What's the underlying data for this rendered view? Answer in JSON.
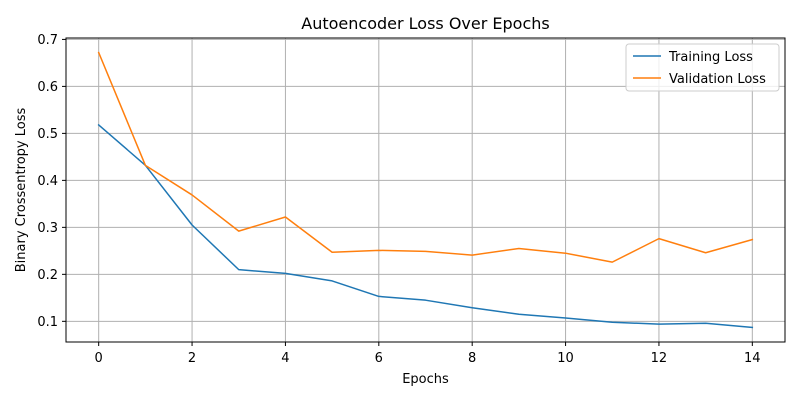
{
  "chart_data": {
    "type": "line",
    "title": "Autoencoder Loss Over Epochs",
    "xlabel": "Epochs",
    "ylabel": "Binary Crossentropy Loss",
    "xlim": [
      -0.7,
      14.7
    ],
    "ylim": [
      0.056,
      0.703
    ],
    "xticks": [
      0,
      2,
      4,
      6,
      8,
      10,
      12,
      14
    ],
    "yticks": [
      0.1,
      0.2,
      0.3,
      0.4,
      0.5,
      0.6,
      0.7
    ],
    "grid": true,
    "legend_position": "top-right",
    "x": [
      0,
      1,
      2,
      3,
      4,
      5,
      6,
      7,
      8,
      9,
      10,
      11,
      12,
      13,
      14
    ],
    "series": [
      {
        "name": "Training Loss",
        "color": "#1f77b4",
        "values": [
          0.518,
          0.432,
          0.305,
          0.21,
          0.202,
          0.186,
          0.153,
          0.145,
          0.129,
          0.115,
          0.107,
          0.098,
          0.094,
          0.096,
          0.087
        ]
      },
      {
        "name": "Validation Loss",
        "color": "#ff7f0e",
        "values": [
          0.672,
          0.432,
          0.369,
          0.292,
          0.322,
          0.247,
          0.251,
          0.249,
          0.241,
          0.255,
          0.245,
          0.226,
          0.276,
          0.246,
          0.274
        ]
      }
    ]
  }
}
